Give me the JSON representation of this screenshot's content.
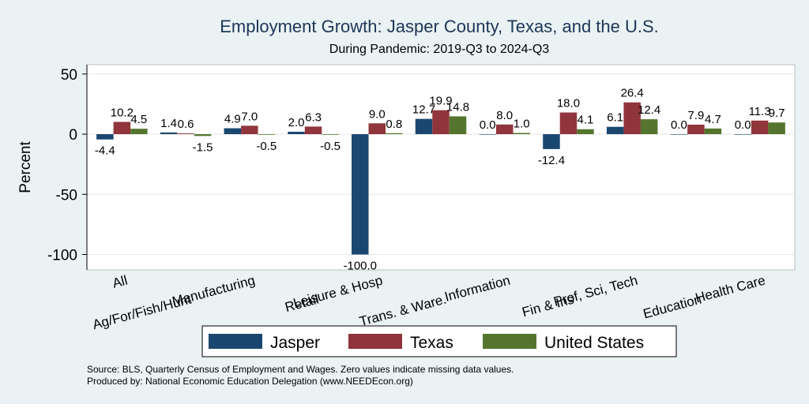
{
  "chart_data": {
    "type": "bar",
    "title": "Employment Growth: Jasper County, Texas, and the U.S.",
    "subtitle": "During Pandemic: 2019-Q3 to 2024-Q3",
    "ylabel": "Percent",
    "ylim": [
      -110,
      60
    ],
    "yticks": [
      50,
      0,
      -50,
      -100
    ],
    "grid": true,
    "legend_position": "bottom",
    "categories": [
      "All",
      "Ag/For/Fish/Hunt",
      "Manufacturing",
      "Retail",
      "Leisure & Hosp",
      "Trans. & Ware.",
      "Information",
      "Fin & Ins",
      "Prof, Sci, Tech",
      "Education",
      "Health Care"
    ],
    "series": [
      {
        "name": "Jasper",
        "color": "#1a476f",
        "values": [
          -4.4,
          1.4,
          4.9,
          2.0,
          -100.0,
          12.7,
          0.0,
          -12.4,
          6.1,
          0.0,
          0.0
        ]
      },
      {
        "name": "Texas",
        "color": "#90353b",
        "values": [
          10.2,
          0.6,
          7.0,
          6.3,
          9.0,
          19.9,
          8.0,
          18.0,
          26.4,
          7.9,
          11.3
        ]
      },
      {
        "name": "United States",
        "color": "#55752f",
        "values": [
          4.5,
          -1.5,
          -0.5,
          -0.5,
          0.8,
          14.8,
          1.0,
          4.1,
          12.4,
          4.7,
          9.7
        ]
      }
    ]
  },
  "footer": {
    "source": "Source: BLS, Quarterly Census of Employment and Wages. Zero values indicate missing data values.",
    "produced_by": "Produced by: National Economic Education Delegation (www.NEEDEcon.org)"
  }
}
